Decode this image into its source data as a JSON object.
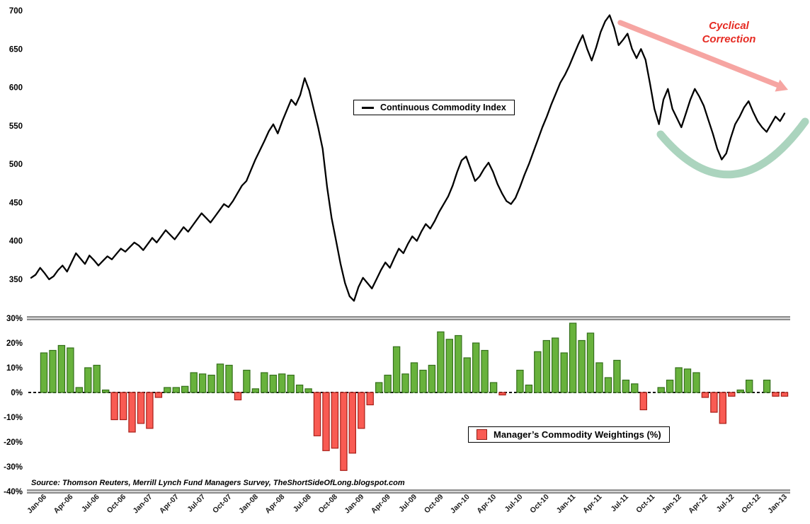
{
  "top_chart": {
    "legend": {
      "label": "Continuous Commodity Index"
    },
    "annotation": {
      "line1": "Cyclical",
      "line2": "Correction"
    },
    "y_tick_labels": [
      "700",
      "650",
      "600",
      "550",
      "500",
      "450",
      "400",
      "350"
    ],
    "colors": {
      "line": "#000000",
      "arrow": "#F6A5A2",
      "arc": "#ABD4BE",
      "annotation_text": "#E62B23"
    }
  },
  "bottom_chart": {
    "legend": {
      "label": "Manager’s Commodity Weightings (%)"
    },
    "source": "Source: Thomson Reuters, Merrill Lynch Fund Managers Survey, TheShortSideOfLong.blogspot.com",
    "y_tick_labels": [
      "30%",
      "20%",
      "10%",
      "0%",
      "-10%",
      "-20%",
      "-30%",
      "-40%"
    ],
    "colors": {
      "positive": "#68B23C",
      "positive_border": "#35701C",
      "negative": "#F95B53",
      "negative_border": "#A8201A",
      "zero_line": "#111111",
      "separator_dark": "#6e6e6e",
      "separator_light": "#d6d6d6"
    }
  },
  "chart_data": [
    {
      "type": "line",
      "title": "Continuous Commodity Index",
      "x_start_label": "Jan-06",
      "x_end_label": "Jan-13",
      "points_per_month": 2,
      "ylim": [
        350,
        700
      ],
      "y_ticks": [
        700,
        650,
        600,
        550,
        500,
        450,
        400,
        350
      ],
      "legend_position": "top-center",
      "annotations": [
        "Cyclical Correction",
        "rounded-bottom arc highlight"
      ],
      "values": [
        352,
        356,
        365,
        358,
        350,
        354,
        362,
        368,
        360,
        372,
        384,
        377,
        370,
        381,
        375,
        368,
        374,
        380,
        376,
        383,
        390,
        386,
        392,
        398,
        394,
        388,
        396,
        404,
        398,
        406,
        414,
        408,
        402,
        410,
        418,
        412,
        420,
        428,
        436,
        430,
        424,
        432,
        440,
        448,
        444,
        452,
        462,
        472,
        478,
        492,
        506,
        518,
        530,
        543,
        552,
        540,
        556,
        570,
        584,
        577,
        590,
        612,
        596,
        572,
        548,
        520,
        470,
        430,
        400,
        370,
        345,
        328,
        322,
        340,
        352,
        345,
        338,
        350,
        362,
        372,
        365,
        378,
        390,
        384,
        396,
        406,
        400,
        412,
        422,
        416,
        426,
        438,
        448,
        458,
        472,
        490,
        505,
        510,
        494,
        478,
        484,
        494,
        502,
        490,
        474,
        462,
        452,
        448,
        456,
        470,
        486,
        500,
        516,
        532,
        548,
        562,
        578,
        592,
        606,
        616,
        628,
        642,
        656,
        668,
        650,
        635,
        652,
        672,
        686,
        694,
        678,
        655,
        662,
        670,
        650,
        638,
        650,
        636,
        605,
        572,
        552,
        584,
        598,
        572,
        560,
        548,
        566,
        584,
        598,
        588,
        576,
        558,
        540,
        520,
        506,
        514,
        534,
        552,
        562,
        574,
        582,
        568,
        556,
        548,
        542,
        552,
        562,
        556,
        566
      ]
    },
    {
      "type": "bar",
      "title": "Manager's Commodity Weightings (%)",
      "ylabel": "Manager's Commodity Weightings (%)",
      "ylim": [
        -40,
        30
      ],
      "months_per_bar": 1,
      "zero_line": "dashed",
      "x_tick_labels": [
        "Jan-06",
        "Apr-06",
        "Jul-06",
        "Oct-06",
        "Jan-07",
        "Apr-07",
        "Jul-07",
        "Oct-07",
        "Jan-08",
        "Apr-08",
        "Jul-08",
        "Oct-08",
        "Jan-09",
        "Apr-09",
        "Jul-09",
        "Oct-09",
        "Jan-10",
        "Apr-10",
        "Jul-10",
        "Oct-10",
        "Jan-11",
        "Apr-11",
        "Jul-11",
        "Oct-11",
        "Jan-12",
        "Apr-12",
        "Jul-12",
        "Oct-12",
        "Jan-13"
      ],
      "values": [
        16,
        17,
        19,
        18,
        2,
        10,
        11,
        1,
        -11,
        -11,
        -16,
        -12.5,
        -14.5,
        -2,
        2,
        2,
        2.5,
        8,
        7.5,
        7,
        11.5,
        11,
        -3,
        9,
        1.5,
        8,
        7,
        7.5,
        7,
        3,
        1.5,
        -17.5,
        -23.5,
        -22.5,
        -31.5,
        -24.5,
        -14.5,
        -5,
        4,
        7,
        18.5,
        7.5,
        12,
        9,
        11,
        24.5,
        21.5,
        23,
        14,
        20,
        17,
        4,
        -1,
        0,
        9,
        3,
        16.5,
        21,
        22,
        16,
        28,
        21,
        24,
        12,
        6,
        13,
        5,
        3.5,
        -7,
        0,
        2,
        5,
        10,
        9.5,
        8,
        -2,
        -8,
        -12.5,
        -1.5,
        1,
        5,
        0,
        5,
        -1.5,
        -1.5
      ]
    }
  ]
}
